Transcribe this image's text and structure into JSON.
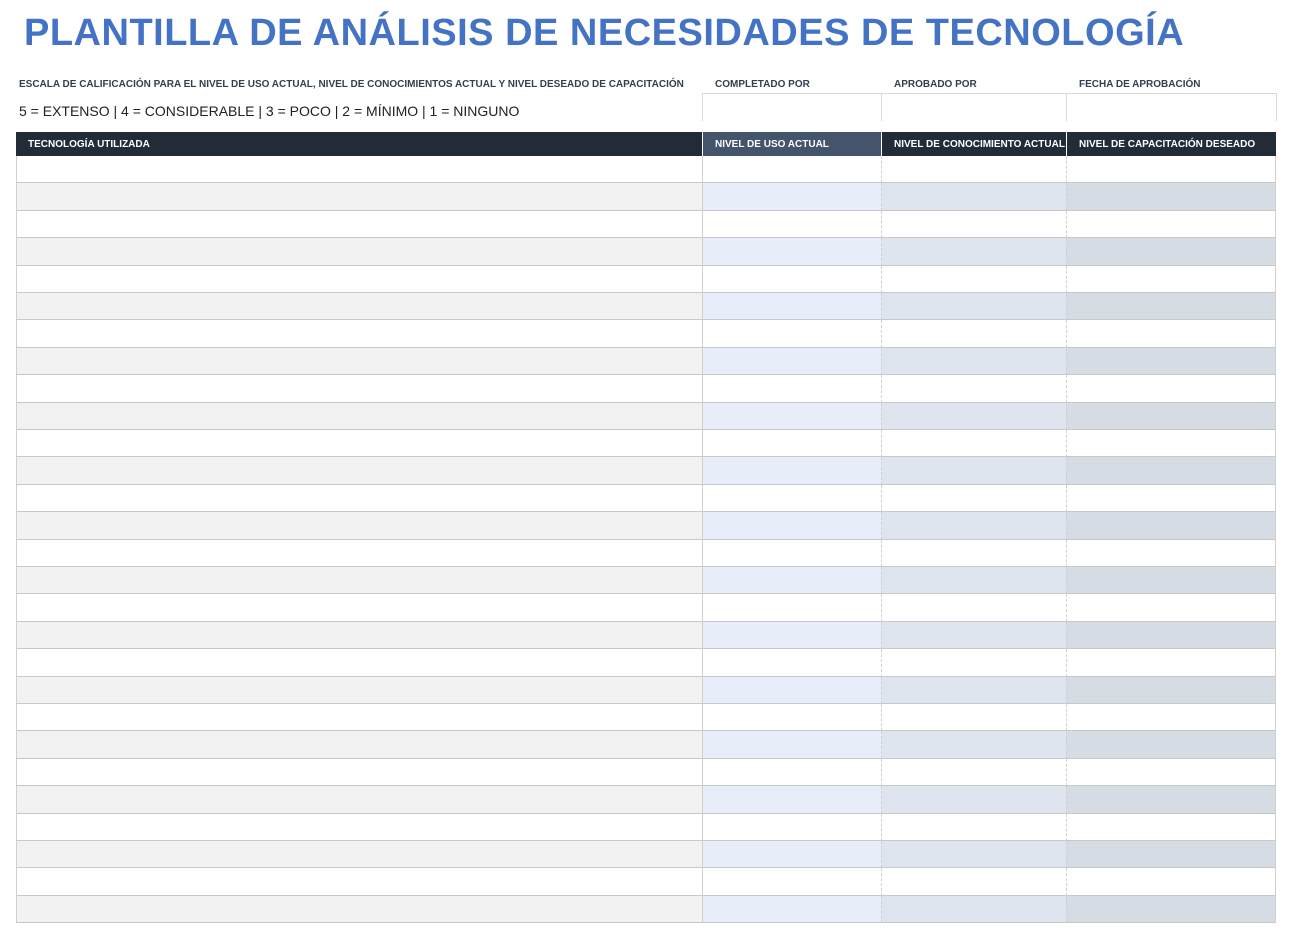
{
  "header": {
    "title": "PLANTILLA DE ANÁLISIS DE NECESIDADES DE TECNOLOGÍA",
    "scale_label": "ESCALA DE CALIFICACIÓN PARA EL NIVEL DE USO ACTUAL, NIVEL DE CONOCIMIENTOS ACTUAL Y NIVEL DESEADO DE CAPACITACIÓN",
    "scale": "5 = EXTENSO | 4 = CONSIDERABLE | 3 = POCO | 2 = MÍNIMO | 1 = NINGUNO",
    "fields": [
      "COMPLETADO POR",
      "APROBADO POR",
      "FECHA DE APROBACIÓN"
    ]
  },
  "table": {
    "columns": [
      "TECNOLOGÍA UTILIZADA",
      "NIVEL DE USO ACTUAL",
      "NIVEL DE CONOCIMIENTO ACTUAL",
      "NIVEL DE CAPACITACIÓN DESEADO"
    ]
  }
}
